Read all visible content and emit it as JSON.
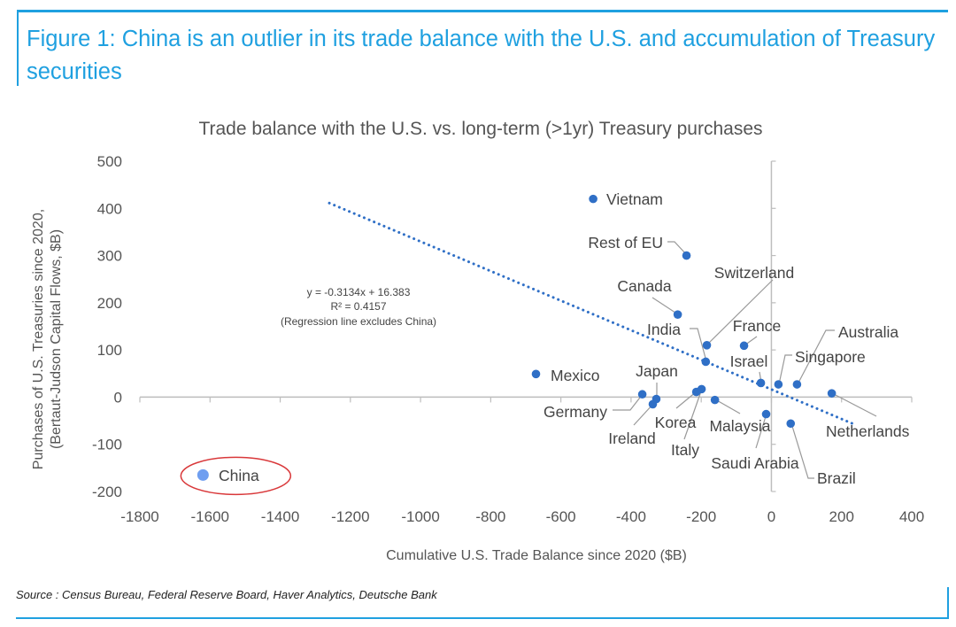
{
  "figure": {
    "title": "Figure 1: China is an outlier in its trade balance with the U.S. and accumulation of Treasury securities",
    "source": "Source : Census Bureau, Federal Reserve Board, Haver Analytics, Deutsche Bank",
    "accent_color": "#1fa0e0"
  },
  "chart_data": {
    "type": "scatter",
    "title": "Trade balance with the U.S. vs. long-term (>1yr) Treasury purchases",
    "xlabel": "Cumulative U.S. Trade Balance since 2020 ($B)",
    "ylabel_line1": "Purchases of U.S. Treasuries since 2020,",
    "ylabel_line2": "(Bertaut-Judson Capital Flows, $B)",
    "xlim": [
      -1800,
      400
    ],
    "ylim": [
      -200,
      500
    ],
    "xticks": [
      "-1800",
      "-1600",
      "-1400",
      "-1200",
      "-1000",
      "-800",
      "-600",
      "-400",
      "-200",
      "0",
      "200",
      "400"
    ],
    "yticks": [
      "500",
      "400",
      "300",
      "200",
      "100",
      "0",
      "-100",
      "-200"
    ],
    "grid": false,
    "point_color": "#2f6fc6",
    "highlight_color": "#6f9ef0",
    "highlight_ring_color": "#d9383a",
    "points": [
      {
        "name": "Vietnam",
        "x": -508,
        "y": 420
      },
      {
        "name": "Rest of EU",
        "x": -242,
        "y": 300
      },
      {
        "name": "Canada",
        "x": -267,
        "y": 175
      },
      {
        "name": "Switzerland",
        "x": -184,
        "y": 110
      },
      {
        "name": "India",
        "x": -187,
        "y": 75
      },
      {
        "name": "France",
        "x": -78,
        "y": 109
      },
      {
        "name": "Israel",
        "x": -30,
        "y": 30
      },
      {
        "name": "Singapore",
        "x": 20,
        "y": 27
      },
      {
        "name": "Australia",
        "x": 73,
        "y": 27
      },
      {
        "name": "Netherlands",
        "x": 172,
        "y": 8
      },
      {
        "name": "Mexico",
        "x": -671,
        "y": 49
      },
      {
        "name": "Germany",
        "x": -368,
        "y": 6
      },
      {
        "name": "Japan",
        "x": -328,
        "y": -4
      },
      {
        "name": "Ireland",
        "x": -338,
        "y": -15
      },
      {
        "name": "Korea",
        "x": -214,
        "y": 11
      },
      {
        "name": "Italy",
        "x": -199,
        "y": 17
      },
      {
        "name": "Malaysia",
        "x": -161,
        "y": -6
      },
      {
        "name": "Saudi Arabia",
        "x": -15,
        "y": -36
      },
      {
        "name": "Brazil",
        "x": 55,
        "y": -56
      },
      {
        "name": "China",
        "x": -1620,
        "y": -165,
        "highlight": true
      }
    ],
    "regression": {
      "slope": -0.3134,
      "intercept": 16.383,
      "x_range": [
        -1260,
        230
      ],
      "style": "dotted",
      "equation_text": "y = -0.3134x + 16.383",
      "r2_text": "R² = 0.4157",
      "note_text": "(Regression line excludes China)"
    }
  }
}
